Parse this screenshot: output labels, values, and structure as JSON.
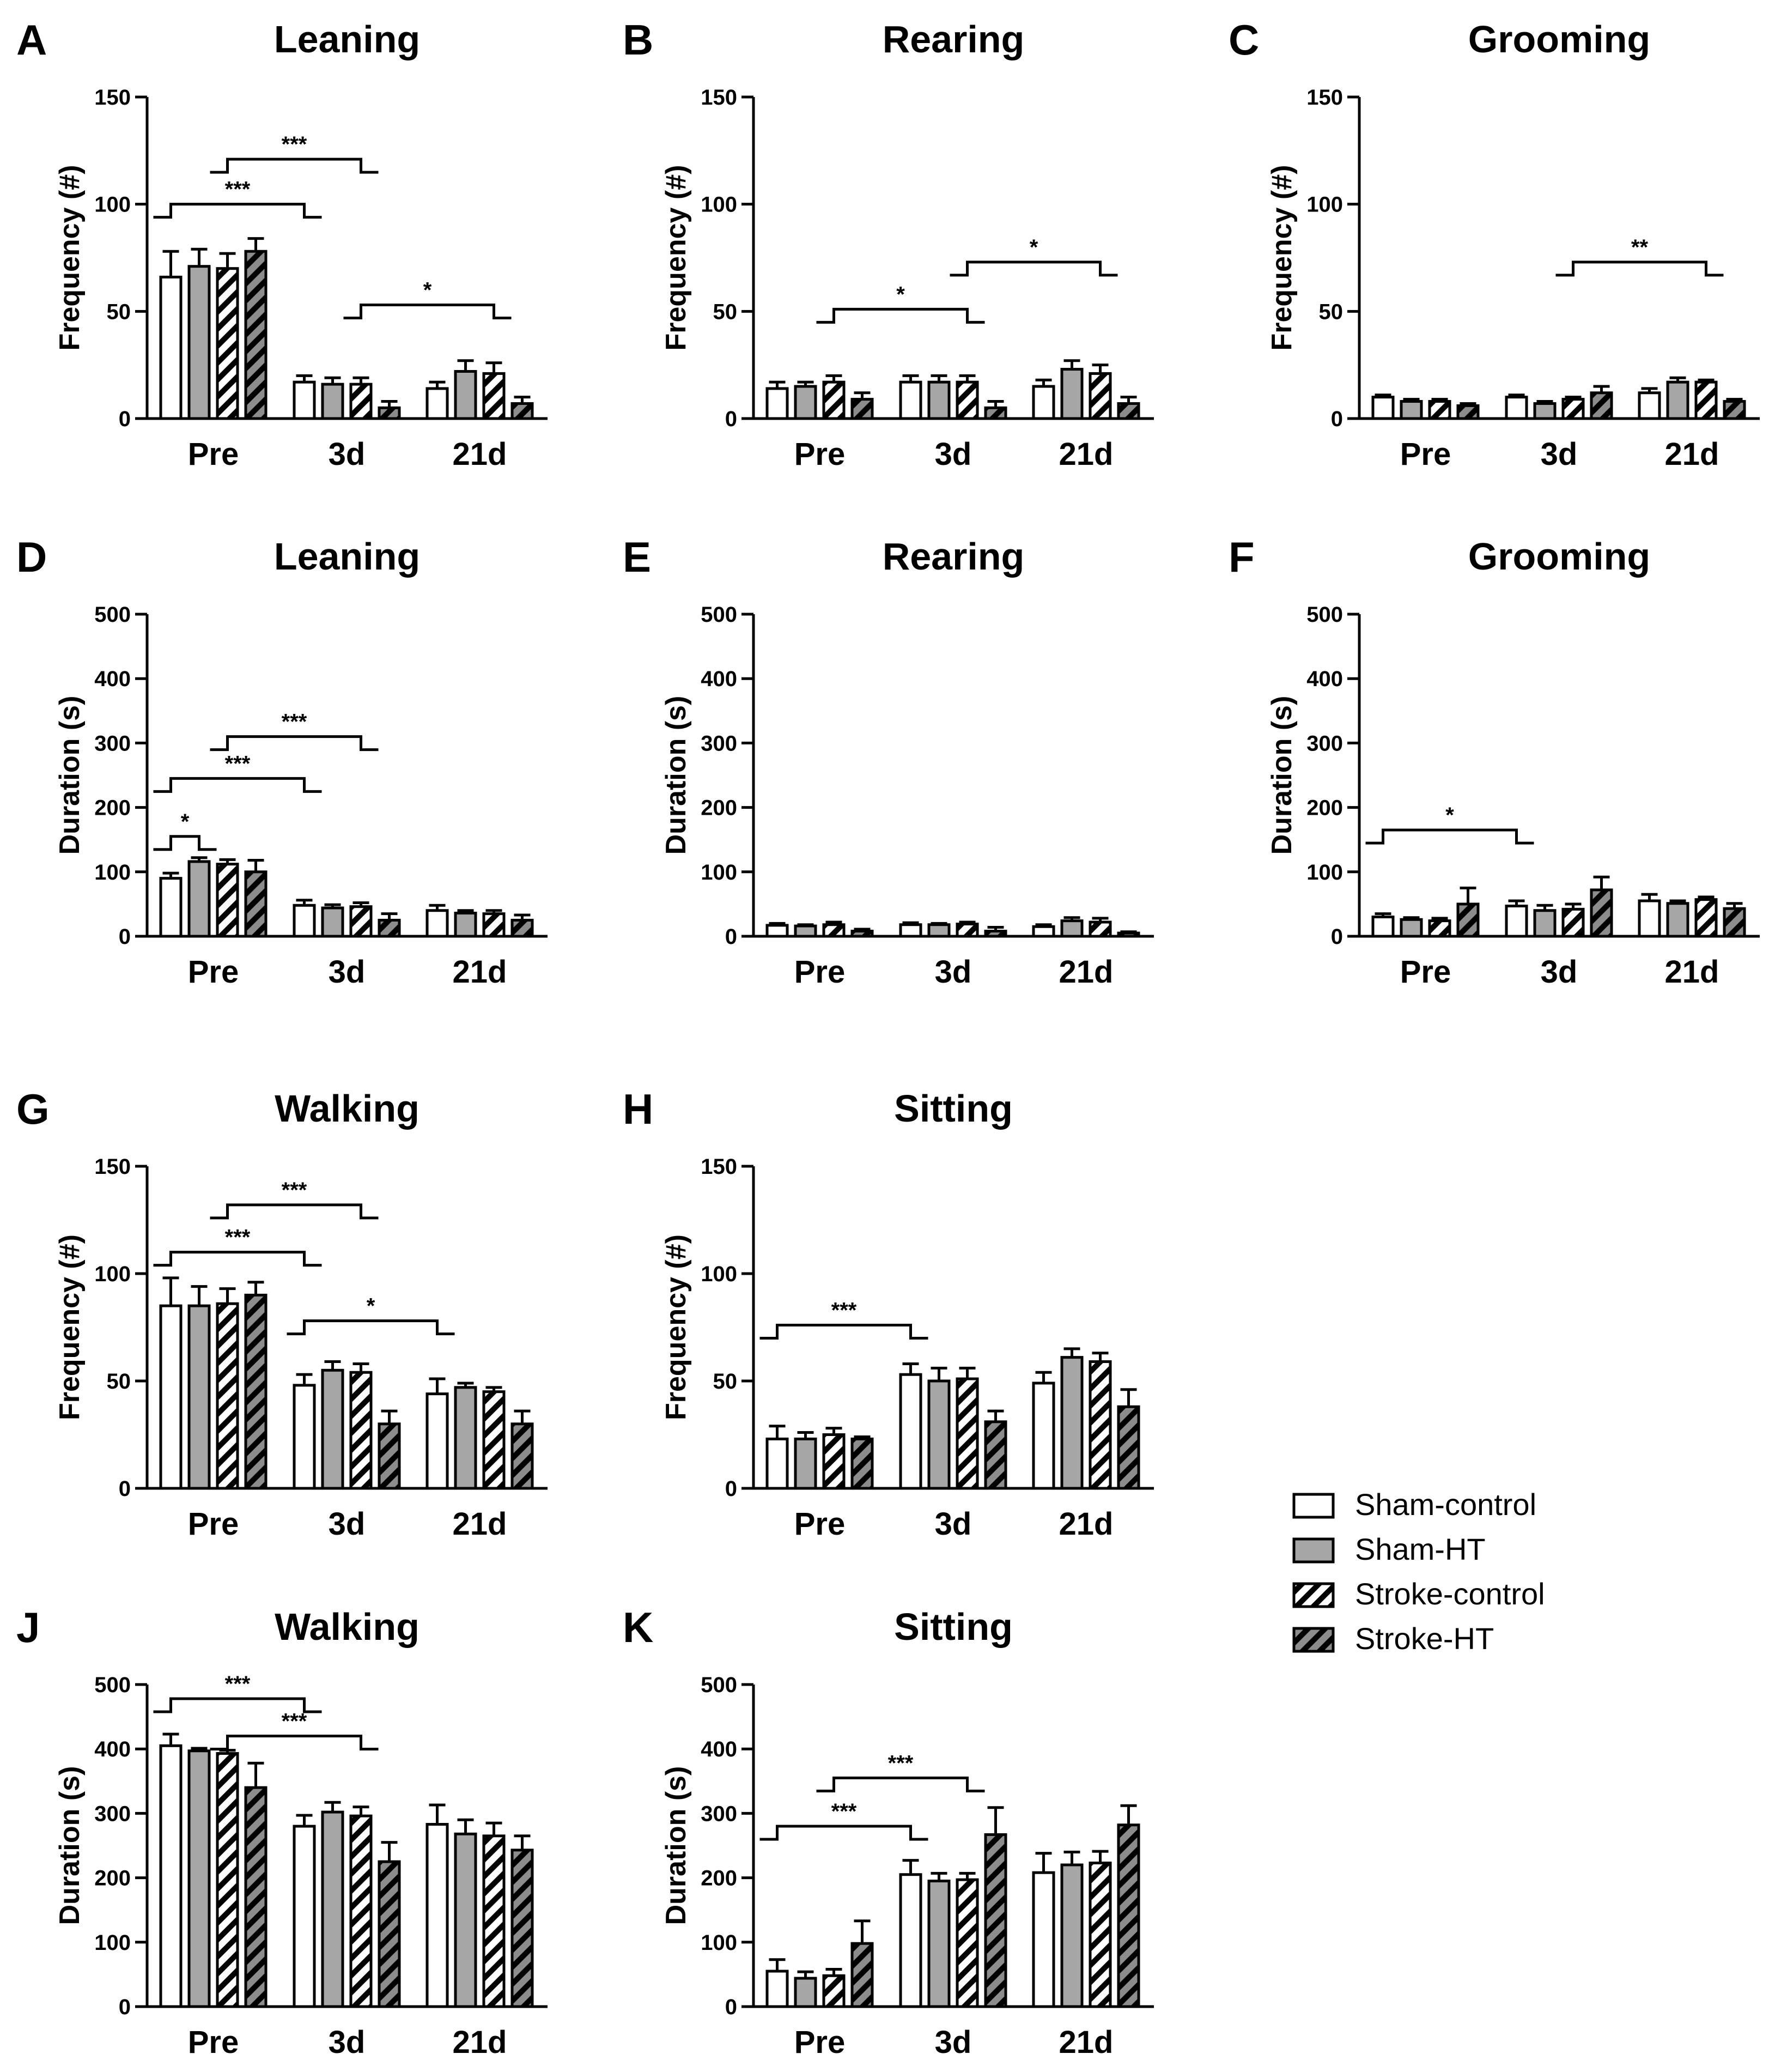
{
  "legend": {
    "items": [
      {
        "label": "Sham-control",
        "fill": "white"
      },
      {
        "label": "Sham-HT",
        "fill": "gray"
      },
      {
        "label": "Stroke-control",
        "fill": "hatch-white"
      },
      {
        "label": "Stroke-HT",
        "fill": "hatch-gray"
      }
    ]
  },
  "colors": {
    "bar_gray": "#a6a6a6",
    "stroke": "#000000",
    "hatch_gray_bg": "#8c8c8c"
  },
  "chart_data": [
    {
      "panel": "A",
      "title": "Leaning",
      "type": "bar",
      "ylabel": "Frequency (#)",
      "ylim": [
        0,
        150
      ],
      "yticks": [
        0,
        50,
        100,
        150
      ],
      "categories": [
        "Pre",
        "3d",
        "21d"
      ],
      "series": [
        {
          "name": "Sham-control",
          "values": [
            66,
            17,
            14
          ],
          "errors": [
            12,
            3,
            3
          ]
        },
        {
          "name": "Sham-HT",
          "values": [
            71,
            16,
            22
          ],
          "errors": [
            8,
            3,
            5
          ]
        },
        {
          "name": "Stroke-control",
          "values": [
            70,
            16,
            21
          ],
          "errors": [
            7,
            3,
            5
          ]
        },
        {
          "name": "Stroke-HT",
          "values": [
            78,
            5,
            7
          ],
          "errors": [
            6,
            3,
            3
          ]
        }
      ],
      "significance": [
        {
          "label": "***",
          "from": [
            0,
            0
          ],
          "to": [
            1,
            0
          ],
          "y": 100
        },
        {
          "label": "***",
          "from": [
            0,
            2
          ],
          "to": [
            1,
            2
          ],
          "y": 121
        },
        {
          "label": "*",
          "from": [
            1,
            2
          ],
          "to": [
            2,
            2
          ],
          "y": 53
        }
      ]
    },
    {
      "panel": "B",
      "title": "Rearing",
      "type": "bar",
      "ylabel": "Frequency (#)",
      "ylim": [
        0,
        150
      ],
      "yticks": [
        0,
        50,
        100,
        150
      ],
      "categories": [
        "Pre",
        "3d",
        "21d"
      ],
      "series": [
        {
          "name": "Sham-control",
          "values": [
            14,
            17,
            15
          ],
          "errors": [
            3,
            3,
            3
          ]
        },
        {
          "name": "Sham-HT",
          "values": [
            15,
            17,
            23
          ],
          "errors": [
            2,
            3,
            4
          ]
        },
        {
          "name": "Stroke-control",
          "values": [
            17,
            17,
            21
          ],
          "errors": [
            3,
            3,
            4
          ]
        },
        {
          "name": "Stroke-HT",
          "values": [
            9,
            5,
            7
          ],
          "errors": [
            3,
            3,
            3
          ]
        }
      ],
      "significance": [
        {
          "label": "*",
          "from": [
            0,
            2
          ],
          "to": [
            1,
            2
          ],
          "y": 51
        },
        {
          "label": "*",
          "from": [
            1,
            2
          ],
          "to": [
            2,
            2
          ],
          "y": 73
        }
      ]
    },
    {
      "panel": "C",
      "title": "Grooming",
      "type": "bar",
      "ylabel": "Frequency (#)",
      "ylim": [
        0,
        150
      ],
      "yticks": [
        0,
        50,
        100,
        150
      ],
      "categories": [
        "Pre",
        "3d",
        "21d"
      ],
      "series": [
        {
          "name": "Sham-control",
          "values": [
            10,
            10,
            12
          ],
          "errors": [
            1,
            1,
            2
          ]
        },
        {
          "name": "Sham-HT",
          "values": [
            8,
            7,
            17
          ],
          "errors": [
            1,
            1,
            2
          ]
        },
        {
          "name": "Stroke-control",
          "values": [
            8,
            9,
            17
          ],
          "errors": [
            1,
            1,
            1
          ]
        },
        {
          "name": "Stroke-HT",
          "values": [
            6,
            12,
            8
          ],
          "errors": [
            1,
            3,
            1
          ]
        }
      ],
      "significance": [
        {
          "label": "**",
          "from": [
            1,
            2
          ],
          "to": [
            2,
            2
          ],
          "y": 73
        }
      ]
    },
    {
      "panel": "D",
      "title": "Leaning",
      "type": "bar",
      "ylabel": "Duration (s)",
      "ylim": [
        0,
        500
      ],
      "yticks": [
        0,
        100,
        200,
        300,
        400,
        500
      ],
      "categories": [
        "Pre",
        "3d",
        "21d"
      ],
      "series": [
        {
          "name": "Sham-control",
          "values": [
            90,
            48,
            40
          ],
          "errors": [
            8,
            8,
            8
          ]
        },
        {
          "name": "Sham-HT",
          "values": [
            116,
            44,
            36
          ],
          "errors": [
            6,
            5,
            4
          ]
        },
        {
          "name": "Stroke-control",
          "values": [
            112,
            46,
            35
          ],
          "errors": [
            7,
            6,
            5
          ]
        },
        {
          "name": "Stroke-HT",
          "values": [
            100,
            25,
            25
          ],
          "errors": [
            18,
            10,
            8
          ]
        }
      ],
      "significance": [
        {
          "label": "*",
          "from": [
            0,
            0
          ],
          "to": [
            0,
            1
          ],
          "y": 155
        },
        {
          "label": "***",
          "from": [
            0,
            0
          ],
          "to": [
            1,
            0
          ],
          "y": 245
        },
        {
          "label": "***",
          "from": [
            0,
            2
          ],
          "to": [
            1,
            2
          ],
          "y": 310
        }
      ]
    },
    {
      "panel": "E",
      "title": "Rearing",
      "type": "bar",
      "ylabel": "Duration (s)",
      "ylim": [
        0,
        500
      ],
      "yticks": [
        0,
        100,
        200,
        300,
        400,
        500
      ],
      "categories": [
        "Pre",
        "3d",
        "21d"
      ],
      "series": [
        {
          "name": "Sham-control",
          "values": [
            17,
            18,
            15
          ],
          "errors": [
            3,
            3,
            3
          ]
        },
        {
          "name": "Sham-HT",
          "values": [
            16,
            18,
            24
          ],
          "errors": [
            2,
            2,
            5
          ]
        },
        {
          "name": "Stroke-control",
          "values": [
            18,
            19,
            22
          ],
          "errors": [
            4,
            3,
            6
          ]
        },
        {
          "name": "Stroke-HT",
          "values": [
            8,
            8,
            5
          ],
          "errors": [
            3,
            6,
            2
          ]
        }
      ],
      "significance": []
    },
    {
      "panel": "F",
      "title": "Grooming",
      "type": "bar",
      "ylabel": "Duration (s)",
      "ylim": [
        0,
        500
      ],
      "yticks": [
        0,
        100,
        200,
        300,
        400,
        500
      ],
      "categories": [
        "Pre",
        "3d",
        "21d"
      ],
      "series": [
        {
          "name": "Sham-control",
          "values": [
            30,
            47,
            55
          ],
          "errors": [
            5,
            8,
            10
          ]
        },
        {
          "name": "Sham-HT",
          "values": [
            26,
            40,
            51
          ],
          "errors": [
            3,
            8,
            4
          ]
        },
        {
          "name": "Stroke-control",
          "values": [
            24,
            42,
            57
          ],
          "errors": [
            4,
            8,
            4
          ]
        },
        {
          "name": "Stroke-HT",
          "values": [
            50,
            72,
            43
          ],
          "errors": [
            25,
            20,
            8
          ]
        }
      ],
      "significance": [
        {
          "label": "*",
          "from": [
            0,
            0
          ],
          "to": [
            1,
            0
          ],
          "y": 165
        }
      ]
    },
    {
      "panel": "G",
      "title": "Walking",
      "type": "bar",
      "ylabel": "Frequency (#)",
      "ylim": [
        0,
        150
      ],
      "yticks": [
        0,
        50,
        100,
        150
      ],
      "categories": [
        "Pre",
        "3d",
        "21d"
      ],
      "series": [
        {
          "name": "Sham-control",
          "values": [
            85,
            48,
            44
          ],
          "errors": [
            13,
            5,
            7
          ]
        },
        {
          "name": "Sham-HT",
          "values": [
            85,
            55,
            47
          ],
          "errors": [
            9,
            4,
            2
          ]
        },
        {
          "name": "Stroke-control",
          "values": [
            86,
            54,
            45
          ],
          "errors": [
            7,
            4,
            2
          ]
        },
        {
          "name": "Stroke-HT",
          "values": [
            90,
            30,
            30
          ],
          "errors": [
            6,
            6,
            6
          ]
        }
      ],
      "significance": [
        {
          "label": "***",
          "from": [
            0,
            0
          ],
          "to": [
            1,
            0
          ],
          "y": 110
        },
        {
          "label": "***",
          "from": [
            0,
            2
          ],
          "to": [
            1,
            2
          ],
          "y": 132
        },
        {
          "label": "*",
          "from": [
            1,
            0
          ],
          "to": [
            2,
            0
          ],
          "y": 78
        }
      ]
    },
    {
      "panel": "H",
      "title": "Sitting",
      "type": "bar",
      "ylabel": "Frequency (#)",
      "ylim": [
        0,
        150
      ],
      "yticks": [
        0,
        50,
        100,
        150
      ],
      "categories": [
        "Pre",
        "3d",
        "21d"
      ],
      "series": [
        {
          "name": "Sham-control",
          "values": [
            23,
            53,
            49
          ],
          "errors": [
            6,
            5,
            5
          ]
        },
        {
          "name": "Sham-HT",
          "values": [
            23,
            50,
            61
          ],
          "errors": [
            3,
            6,
            4
          ]
        },
        {
          "name": "Stroke-control",
          "values": [
            25,
            51,
            59
          ],
          "errors": [
            3,
            5,
            4
          ]
        },
        {
          "name": "Stroke-HT",
          "values": [
            23,
            31,
            38
          ],
          "errors": [
            1,
            5,
            8
          ]
        }
      ],
      "significance": [
        {
          "label": "***",
          "from": [
            0,
            0
          ],
          "to": [
            1,
            0
          ],
          "y": 76
        }
      ]
    },
    {
      "panel": "J",
      "title": "Walking",
      "type": "bar",
      "ylabel": "Duration (s)",
      "ylim": [
        0,
        500
      ],
      "yticks": [
        0,
        100,
        200,
        300,
        400,
        500
      ],
      "categories": [
        "Pre",
        "3d",
        "21d"
      ],
      "series": [
        {
          "name": "Sham-control",
          "values": [
            405,
            280,
            283
          ],
          "errors": [
            18,
            17,
            30
          ]
        },
        {
          "name": "Sham-HT",
          "values": [
            397,
            302,
            268
          ],
          "errors": [
            4,
            15,
            22
          ]
        },
        {
          "name": "Stroke-control",
          "values": [
            393,
            296,
            265
          ],
          "errors": [
            5,
            14,
            20
          ]
        },
        {
          "name": "Stroke-HT",
          "values": [
            340,
            225,
            243
          ],
          "errors": [
            38,
            30,
            22
          ]
        }
      ],
      "significance": [
        {
          "label": "***",
          "from": [
            0,
            0
          ],
          "to": [
            1,
            0
          ],
          "y": 478
        },
        {
          "label": "***",
          "from": [
            0,
            2
          ],
          "to": [
            1,
            2
          ],
          "y": 420
        }
      ]
    },
    {
      "panel": "K",
      "title": "Sitting",
      "type": "bar",
      "ylabel": "Duration (s)",
      "ylim": [
        0,
        500
      ],
      "yticks": [
        0,
        100,
        200,
        300,
        400,
        500
      ],
      "categories": [
        "Pre",
        "3d",
        "21d"
      ],
      "series": [
        {
          "name": "Sham-control",
          "values": [
            55,
            205,
            208
          ],
          "errors": [
            18,
            22,
            30
          ]
        },
        {
          "name": "Sham-HT",
          "values": [
            44,
            195,
            220
          ],
          "errors": [
            10,
            12,
            20
          ]
        },
        {
          "name": "Stroke-control",
          "values": [
            48,
            197,
            223
          ],
          "errors": [
            10,
            10,
            18
          ]
        },
        {
          "name": "Stroke-HT",
          "values": [
            98,
            267,
            282
          ],
          "errors": [
            35,
            42,
            30
          ]
        }
      ],
      "significance": [
        {
          "label": "***",
          "from": [
            0,
            0
          ],
          "to": [
            1,
            0
          ],
          "y": 280
        },
        {
          "label": "***",
          "from": [
            0,
            2
          ],
          "to": [
            1,
            2
          ],
          "y": 355
        }
      ]
    }
  ]
}
